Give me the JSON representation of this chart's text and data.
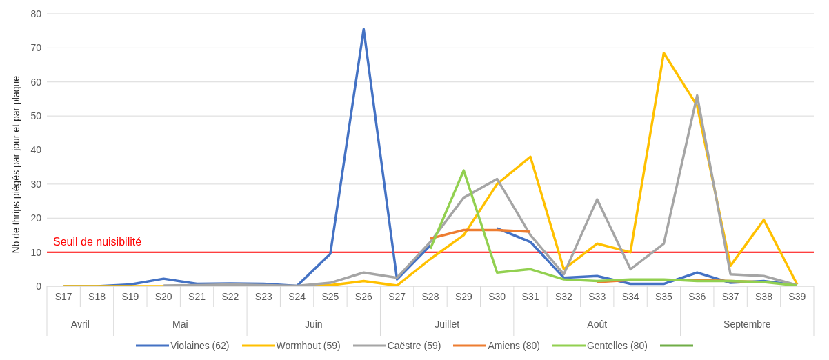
{
  "chart_data": {
    "type": "line",
    "ylabel": "Nb de thrips piégés par jour et par plaque",
    "categories": [
      "S17",
      "S18",
      "S19",
      "S20",
      "S21",
      "S22",
      "S23",
      "S24",
      "S25",
      "S26",
      "S27",
      "S28",
      "S29",
      "S30",
      "S31",
      "S32",
      "S33",
      "S34",
      "S35",
      "S36",
      "S37",
      "S38",
      "S39"
    ],
    "series": [
      {
        "name": "Violaines (62)",
        "color": "#4472c4",
        "values": [
          0,
          0,
          0.5,
          2.2,
          0.7,
          0.8,
          0.7,
          0.1,
          9.5,
          75.5,
          2,
          12,
          null,
          17,
          13,
          2.5,
          3,
          0.7,
          0.7,
          4,
          1,
          1.5,
          0.3
        ]
      },
      {
        "name": "Wormhout (59)",
        "color": "#ffc000",
        "values": [
          0,
          0,
          0,
          0,
          0,
          0,
          0,
          0,
          0.3,
          1.5,
          0.2,
          8,
          15,
          30,
          38,
          5,
          12.5,
          10,
          68.5,
          53,
          6,
          19.5,
          0.5
        ]
      },
      {
        "name": "Caëstre (59)",
        "color": "#a5a5a5",
        "values": [
          null,
          null,
          null,
          0.2,
          0.3,
          0.5,
          0.3,
          0.1,
          1,
          4,
          2.5,
          13,
          26,
          31.5,
          15,
          3.5,
          25.5,
          5,
          12.5,
          56,
          3.5,
          3,
          0.3
        ]
      },
      {
        "name": "Amiens (80)",
        "color": "#ed7d31",
        "values": [
          null,
          null,
          null,
          null,
          null,
          null,
          null,
          null,
          null,
          null,
          null,
          14,
          16.5,
          16.5,
          16,
          null,
          1.2,
          1.8,
          1.8,
          1.8,
          1.5,
          1.2,
          null
        ]
      },
      {
        "name": "Gentelles (80)",
        "color": "#92d050",
        "values": [
          null,
          null,
          null,
          null,
          null,
          null,
          null,
          null,
          null,
          null,
          null,
          11,
          34,
          4,
          5,
          2,
          1.5,
          2,
          2,
          1.5,
          1.5,
          1.2,
          0.2
        ]
      },
      {
        "color": "#70ad47",
        "values": [
          null,
          null,
          null,
          null,
          null,
          null,
          null,
          null,
          null,
          null,
          null,
          null,
          null,
          null,
          null,
          null,
          null,
          null,
          null,
          null,
          null,
          null,
          null
        ]
      }
    ],
    "ylim": [
      0,
      80
    ],
    "yticks": [
      0,
      10,
      20,
      30,
      40,
      50,
      60,
      70,
      80
    ],
    "grid": "y",
    "legend": "bottom",
    "marker": "none",
    "line_style": "solid",
    "ref_lines": [
      {
        "axis": "y",
        "value": 10,
        "label": "Seuil de nuisibilité",
        "color": "#ff0000"
      }
    ],
    "annotations": [
      "Avril",
      "Mai",
      "Juin",
      "Juillet",
      "Août",
      "Septembre"
    ]
  }
}
